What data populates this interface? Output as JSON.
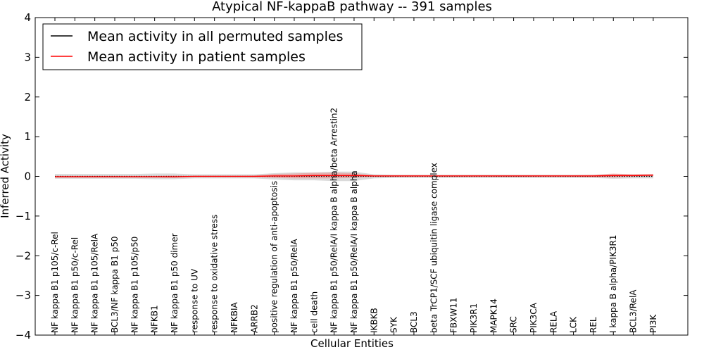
{
  "chart_data": {
    "type": "line",
    "title": "Atypical NF-kappaB pathway -- 391 samples",
    "xlabel": "Cellular Entities",
    "ylabel": "Inferred Activity",
    "ylim": [
      -4,
      4
    ],
    "yticks": [
      4,
      3,
      2,
      1,
      0,
      -1,
      -2,
      -3,
      -4
    ],
    "ytick_labels": [
      "4",
      "3",
      "2",
      "1",
      "0",
      "−1",
      "−2",
      "−3",
      "−4"
    ],
    "grid": false,
    "legend_position": "top-left",
    "categories": [
      "NF kappa B1 p105/c-Rel",
      "NF kappa B1 p50/c-Rel",
      "NF kappa B1 p105/RelA",
      "BCL3/NF kappa B1 p50",
      "NF kappa B1 p105/p50",
      "NFKB1",
      "NF kappa B1 p50 dimer",
      "response to UV",
      "response to oxidative stress",
      "NFKBIA",
      "ARRB2",
      "positive regulation of anti-apoptosis",
      "NF kappa B1 p50/RelA",
      "cell death",
      "NF kappa B1 p50/RelA/I kappa B alpha/beta Arrestin2",
      "NF kappa B1 p50/RelA/I kappa B alpha",
      "IKBKB",
      "SYK",
      "BCL3",
      "beta TrCP1/SCF ubiquitin ligase complex",
      "FBXW11",
      "PIK3R1",
      "MAPK14",
      "SRC",
      "PIK3CA",
      "RELA",
      "LCK",
      "REL",
      "I kappa B alpha/PIK3R1",
      "BCL3/RelA",
      "PI3K"
    ],
    "series": [
      {
        "name": "Mean activity in all permuted samples",
        "color": "#000000",
        "style": "dotted",
        "values": [
          0,
          0,
          0,
          0,
          0,
          0,
          0,
          0,
          0,
          0,
          0,
          0,
          0,
          0,
          0,
          0,
          0,
          0,
          0,
          0,
          0,
          0,
          0,
          0,
          0,
          0,
          0,
          0,
          0,
          0,
          0
        ],
        "band": [
          0.06,
          0.06,
          0.06,
          0.06,
          0.06,
          0.07,
          0.07,
          0.05,
          0.05,
          0.05,
          0.05,
          0.08,
          0.1,
          0.1,
          0.12,
          0.12,
          0.05,
          0.04,
          0.04,
          0.04,
          0.04,
          0.04,
          0.04,
          0.04,
          0.04,
          0.04,
          0.04,
          0.04,
          0.06,
          0.05,
          0.05
        ]
      },
      {
        "name": "Mean activity in patient samples",
        "color": "#ff0000",
        "style": "solid",
        "values": [
          -0.01,
          -0.01,
          -0.01,
          -0.01,
          -0.01,
          -0.01,
          -0.01,
          0.0,
          0.0,
          0.0,
          0.0,
          0.01,
          0.01,
          0.02,
          0.02,
          0.02,
          0.01,
          0.01,
          0.01,
          0.01,
          0.01,
          0.01,
          0.01,
          0.01,
          0.01,
          0.01,
          0.01,
          0.01,
          0.02,
          0.02,
          0.03
        ],
        "band": [
          0.02,
          0.02,
          0.02,
          0.02,
          0.02,
          0.02,
          0.03,
          0.01,
          0.01,
          0.01,
          0.02,
          0.05,
          0.06,
          0.07,
          0.07,
          0.06,
          0.02,
          0.02,
          0.02,
          0.02,
          0.02,
          0.02,
          0.02,
          0.02,
          0.02,
          0.02,
          0.02,
          0.03,
          0.05,
          0.03,
          0.03
        ]
      }
    ]
  }
}
